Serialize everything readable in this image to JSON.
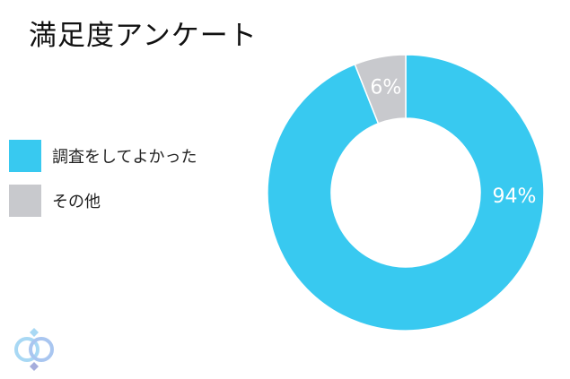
{
  "chart_data": {
    "type": "pie",
    "title": "満足度アンケート",
    "donut": true,
    "categories": [
      "調査をしてよかった",
      "その他"
    ],
    "values": [
      94,
      6
    ],
    "data_labels": [
      "94%",
      "6%"
    ],
    "colors": [
      "#38c9f0",
      "#c8c9cd"
    ],
    "legend_position": "left"
  },
  "logo": {
    "icon": "interlocked-rings-logo"
  }
}
